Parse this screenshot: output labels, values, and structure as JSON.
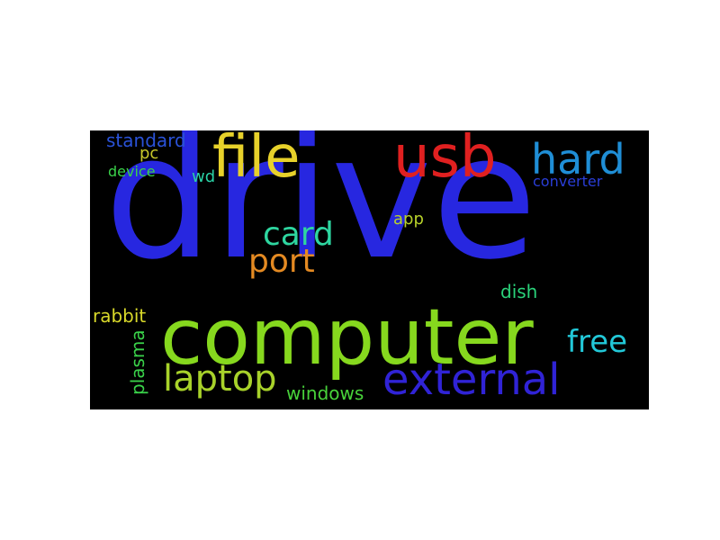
{
  "words": {
    "drive": {
      "text": "drive",
      "color": "#2727e0"
    },
    "computer": {
      "text": "computer",
      "color": "#86d81e"
    },
    "file": {
      "text": "file",
      "color": "#e7d12a"
    },
    "usb": {
      "text": "usb",
      "color": "#e02020"
    },
    "hard": {
      "text": "hard",
      "color": "#1f8ed6"
    },
    "external": {
      "text": "external",
      "color": "#3023d6"
    },
    "laptop": {
      "text": "laptop",
      "color": "#a8d22a"
    },
    "card": {
      "text": "card",
      "color": "#2ed6a0"
    },
    "port": {
      "text": "port",
      "color": "#e48a22"
    },
    "free": {
      "text": "free",
      "color": "#22c8d8"
    },
    "standard": {
      "text": "standard",
      "color": "#2a52d8"
    },
    "pc": {
      "text": "pc",
      "color": "#c8c82a"
    },
    "device": {
      "text": "device",
      "color": "#3ad24a"
    },
    "wd": {
      "text": "wd",
      "color": "#2ad2a6"
    },
    "converter": {
      "text": "converter",
      "color": "#2a3ed8"
    },
    "app": {
      "text": "app",
      "color": "#b8d22a"
    },
    "dish": {
      "text": "dish",
      "color": "#2ad27a"
    },
    "rabbit": {
      "text": "rabbit",
      "color": "#d8d82a"
    },
    "plasma": {
      "text": "plasma",
      "color": "#3ad24a"
    },
    "windows": {
      "text": "windows",
      "color": "#48d23a"
    }
  }
}
